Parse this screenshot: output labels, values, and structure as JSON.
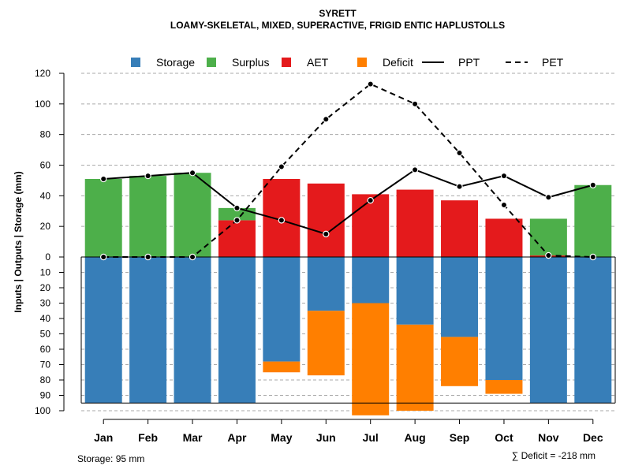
{
  "chart_data": {
    "type": "bar",
    "title": "SYRETT",
    "subtitle": "LOAMY-SKELETAL, MIXED, SUPERACTIVE, FRIGID ENTIC HAPLUSTOLLS",
    "ylabel": "Inputs | Outputs | Storage    (mm)",
    "categories": [
      "Jan",
      "Feb",
      "Mar",
      "Apr",
      "May",
      "Jun",
      "Jul",
      "Aug",
      "Sep",
      "Oct",
      "Nov",
      "Dec"
    ],
    "ylim_upper": [
      0,
      120
    ],
    "ylim_lower": [
      0,
      100
    ],
    "upper_ticks": [
      "0",
      "20",
      "40",
      "60",
      "80",
      "100",
      "120"
    ],
    "upper_tick_values": [
      0,
      20,
      40,
      60,
      80,
      100,
      120
    ],
    "lower_ticks": [
      "10",
      "20",
      "30",
      "40",
      "50",
      "60",
      "70",
      "80",
      "90",
      "100"
    ],
    "lower_tick_values": [
      10,
      20,
      30,
      40,
      50,
      60,
      70,
      80,
      90,
      100
    ],
    "grid": true,
    "legend_position": "top",
    "legend": [
      {
        "label": "Storage",
        "color": "#377EB8",
        "kind": "box"
      },
      {
        "label": "Surplus",
        "color": "#4DAF4A",
        "kind": "box"
      },
      {
        "label": "AET",
        "color": "#E41A1C",
        "kind": "box"
      },
      {
        "label": "Deficit",
        "color": "#FF7F00",
        "kind": "box"
      },
      {
        "label": "PPT",
        "color": "#000000",
        "kind": "line"
      },
      {
        "label": "PET",
        "color": "#000000",
        "kind": "dash"
      }
    ],
    "series": [
      {
        "name": "AET",
        "color": "#E41A1C",
        "values": [
          0,
          0,
          0,
          24,
          51,
          48,
          41,
          44,
          37,
          25,
          1,
          0
        ]
      },
      {
        "name": "Surplus",
        "color": "#4DAF4A",
        "values": [
          51,
          53,
          55,
          8,
          0,
          0,
          0,
          0,
          0,
          0,
          24,
          47
        ]
      },
      {
        "name": "Storage",
        "color": "#377EB8",
        "values": [
          95,
          95,
          95,
          95,
          68,
          35,
          30,
          44,
          52,
          80,
          95,
          95
        ]
      },
      {
        "name": "Deficit",
        "color": "#FF7F00",
        "values": [
          0,
          0,
          0,
          0,
          7,
          42,
          73,
          56,
          32,
          9,
          0,
          0
        ]
      },
      {
        "name": "PPT",
        "color": "#000000",
        "style": "solid",
        "values": [
          51,
          53,
          55,
          32,
          24,
          15,
          37,
          57,
          46,
          53,
          39,
          47
        ]
      },
      {
        "name": "PET",
        "color": "#000000",
        "style": "dashed",
        "values": [
          0,
          0,
          0,
          24,
          59,
          90,
          113,
          100,
          68,
          34,
          1,
          0
        ]
      }
    ],
    "storage_capacity": 95,
    "footer_left": "Storage: 95 mm",
    "footer_right": "∑ Deficit = -218 mm"
  }
}
